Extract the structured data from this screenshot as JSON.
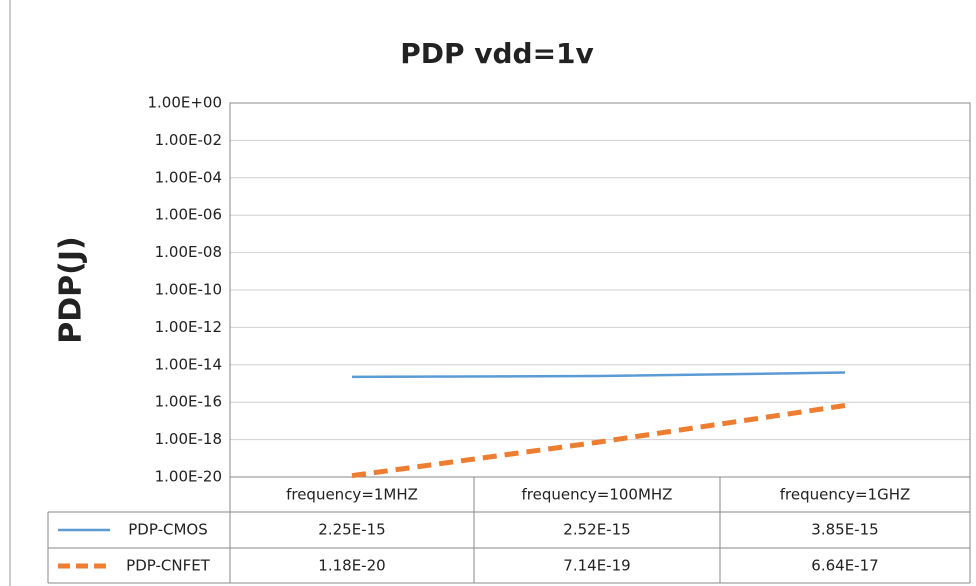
{
  "chart_data": {
    "type": "line",
    "title": "PDP vdd=1v",
    "y_label": "PDP(J)",
    "categories": [
      "frequency=1MHZ",
      "frequency=100MHZ",
      "frequency=1GHZ"
    ],
    "series": [
      {
        "name": "PDP-CMOS",
        "color": "#5b9bd5",
        "dashed": false,
        "values": [
          2.25e-15,
          2.52e-15,
          3.85e-15
        ],
        "value_labels": [
          "2.25E-15",
          "2.52E-15",
          "3.85E-15"
        ]
      },
      {
        "name": "PDP-CNFET",
        "color": "#ed7d31",
        "dashed": true,
        "values": [
          1.18e-20,
          7.14e-19,
          6.64e-17
        ],
        "value_labels": [
          "1.18E-20",
          "7.14E-19",
          "6.64E-17"
        ]
      }
    ],
    "log_scale": true,
    "ylim": [
      1e-20,
      1
    ],
    "yticks": [
      {
        "value": 1,
        "label": "1.00E+00"
      },
      {
        "value": 0.01,
        "label": "1.00E-02"
      },
      {
        "value": 0.0001,
        "label": "1.00E-04"
      },
      {
        "value": 1e-06,
        "label": "1.00E-06"
      },
      {
        "value": 1e-08,
        "label": "1.00E-08"
      },
      {
        "value": 1e-10,
        "label": "1.00E-10"
      },
      {
        "value": 1e-12,
        "label": "1.00E-12"
      },
      {
        "value": 1e-14,
        "label": "1.00E-14"
      },
      {
        "value": 1e-16,
        "label": "1.00E-16"
      },
      {
        "value": 1e-18,
        "label": "1.00E-18"
      },
      {
        "value": 1e-20,
        "label": "1.00E-20"
      }
    ],
    "grid": true
  }
}
